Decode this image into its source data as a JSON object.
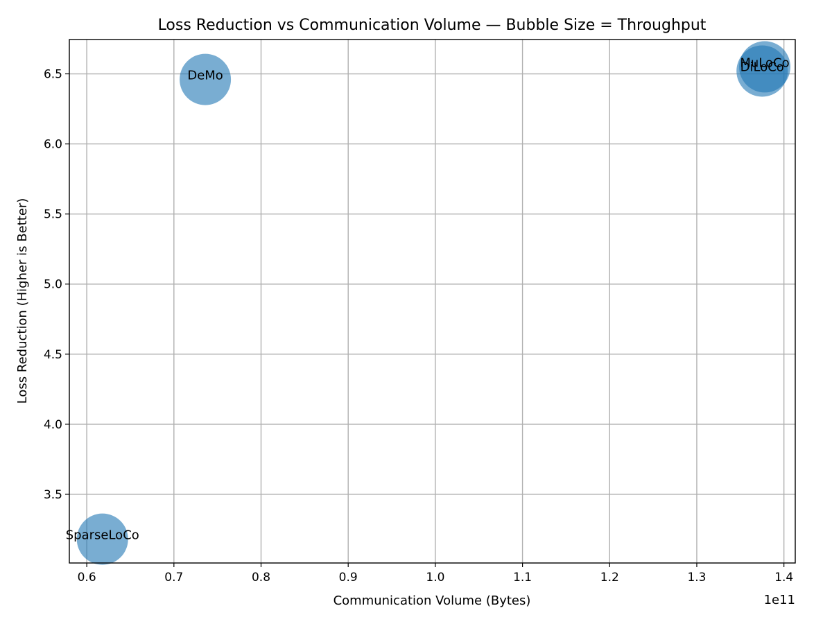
{
  "chart_data": {
    "type": "scatter",
    "title": "Loss Reduction vs Communication Volume — Bubble Size = Throughput",
    "xlabel": "Communication Volume (Bytes)",
    "ylabel": "Loss Reduction (Higher is Better)",
    "x_offset_label": "1e11",
    "xlim": [
      0.58,
      1.413
    ],
    "ylim": [
      3.01,
      6.745
    ],
    "xticks": [
      0.6,
      0.7,
      0.8,
      0.9,
      1.0,
      1.1,
      1.2,
      1.3,
      1.4
    ],
    "xtick_labels": [
      "0.6",
      "0.7",
      "0.8",
      "0.9",
      "1.0",
      "1.1",
      "1.2",
      "1.3",
      "1.4"
    ],
    "yticks": [
      3.5,
      4.0,
      4.5,
      5.0,
      5.5,
      6.0,
      6.5
    ],
    "ytick_labels": [
      "3.5",
      "4.0",
      "4.5",
      "5.0",
      "5.5",
      "6.0",
      "6.5"
    ],
    "grid": true,
    "bubble_color": "#1f77b4",
    "bubble_alpha": 0.6,
    "points": [
      {
        "label": "SparseLoCo",
        "x": 0.618,
        "y": 3.18,
        "size": 1.0
      },
      {
        "label": "DeMo",
        "x": 0.736,
        "y": 6.46,
        "size": 1.0
      },
      {
        "label": "DiLoCo",
        "x": 1.375,
        "y": 6.52,
        "size": 1.0
      },
      {
        "label": "MuLoCo",
        "x": 1.378,
        "y": 6.55,
        "size": 1.0
      }
    ]
  }
}
